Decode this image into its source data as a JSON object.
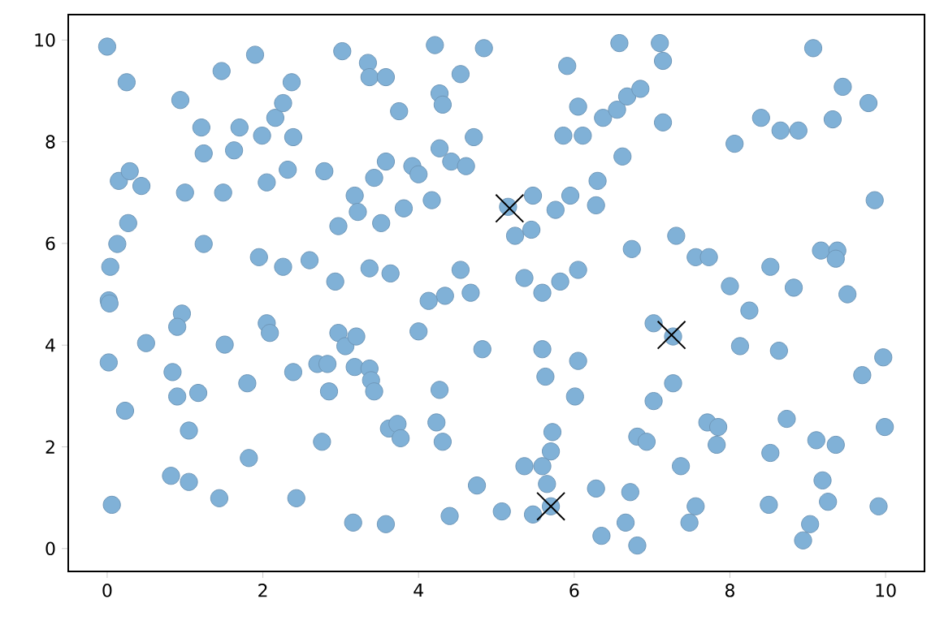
{
  "chart_data": {
    "type": "scatter",
    "xlim": [
      -0.5,
      10.5
    ],
    "ylim": [
      -0.45,
      10.5
    ],
    "xticks": [
      0,
      2,
      4,
      6,
      8,
      10
    ],
    "yticks": [
      0,
      2,
      4,
      6,
      8,
      10
    ],
    "series": [
      {
        "marker": "circle",
        "color": "#80b1d7",
        "x": [
          0,
          0.25,
          0.94,
          1.21,
          1.24,
          1.47,
          1.9,
          1.7,
          1.63,
          1.99,
          2.16,
          2.26,
          2.37,
          2.39,
          2.32,
          2.05,
          1.49,
          1.0,
          0.15,
          0.29,
          0.44,
          0.27,
          0.13,
          0.04,
          0.02,
          0.03,
          1.24,
          1.95,
          2.26,
          2.6,
          2.79,
          2.93,
          3.02,
          3.35,
          3.37,
          3.58,
          3.75,
          3.18,
          3.22,
          2.97,
          3.52,
          3.43,
          3.58,
          3.81,
          3.92,
          4.0,
          3.37,
          3.64,
          4.17,
          4.21,
          4.54,
          4.27,
          4.31,
          4.27,
          4.42,
          4.61,
          4.71,
          4.84,
          4.54,
          4.67,
          4.34,
          4.13,
          5.91,
          6.58,
          7.1,
          7.14,
          6.05,
          5.86,
          6.11,
          6.37,
          6.55,
          6.68,
          6.85,
          7.14,
          6.62,
          6.3,
          5.95,
          5.76,
          6.28,
          5.47,
          5.15,
          5.24,
          5.45,
          5.36,
          5.59,
          5.82,
          6.05,
          6.74,
          7.31,
          7.56,
          7.73,
          8.0,
          8.52,
          8.82,
          9.17,
          9.38,
          9.36,
          9.51,
          9.86,
          8.06,
          8.4,
          8.65,
          8.88,
          9.32,
          9.45,
          9.78,
          9.07,
          0.96,
          0.9,
          0.5,
          1.51,
          0.02,
          0.84,
          0.9,
          1.17,
          0.23,
          1.05,
          1.8,
          2.05,
          2.09,
          1.82,
          0.82,
          1.05,
          1.44,
          0.06,
          2.39,
          2.7,
          2.83,
          2.85,
          2.76,
          2.43,
          2.97,
          3.06,
          3.2,
          3.18,
          3.37,
          3.39,
          3.43,
          3.16,
          3.58,
          3.62,
          3.73,
          3.77,
          4.0,
          4.27,
          4.23,
          4.31,
          4.4,
          4.75,
          4.82,
          8.25,
          7.02,
          7.27,
          8.13,
          8.63,
          9.97,
          9.7,
          5.59,
          6.05,
          5.63,
          6.01,
          7.27,
          7.02,
          7.71,
          7.85,
          7.83,
          8.73,
          9.11,
          9.36,
          9.99,
          8.52,
          6.81,
          6.93,
          5.72,
          5.7,
          5.36,
          5.59,
          7.37,
          5.65,
          5.07,
          5.47,
          5.7,
          6.28,
          6.72,
          6.35,
          6.66,
          6.81,
          7.56,
          7.48,
          8.5,
          9.19,
          9.26,
          9.03,
          8.94,
          9.91
        ],
        "values": [
          9.87,
          9.17,
          8.82,
          8.28,
          7.77,
          9.39,
          9.71,
          8.28,
          7.83,
          8.12,
          8.47,
          8.76,
          9.17,
          8.09,
          7.45,
          7.2,
          7.0,
          7.0,
          7.23,
          7.42,
          7.13,
          6.4,
          5.99,
          5.54,
          4.88,
          4.82,
          5.99,
          5.73,
          5.54,
          5.67,
          7.42,
          5.25,
          9.78,
          9.55,
          9.27,
          9.27,
          8.6,
          6.94,
          6.62,
          6.34,
          6.4,
          7.29,
          7.61,
          6.69,
          7.52,
          7.36,
          5.51,
          5.41,
          6.85,
          9.9,
          9.33,
          8.95,
          8.73,
          7.87,
          7.61,
          7.52,
          8.09,
          9.84,
          5.48,
          5.03,
          4.97,
          4.87,
          9.49,
          9.94,
          9.94,
          9.59,
          8.69,
          8.12,
          8.12,
          8.47,
          8.63,
          8.89,
          9.04,
          8.38,
          7.71,
          7.23,
          6.94,
          6.66,
          6.75,
          6.94,
          6.72,
          6.15,
          6.27,
          5.32,
          5.03,
          5.25,
          5.48,
          5.89,
          6.15,
          5.73,
          5.73,
          5.16,
          5.54,
          5.13,
          5.86,
          5.86,
          5.7,
          5.0,
          6.85,
          7.96,
          8.47,
          8.22,
          8.22,
          8.44,
          9.08,
          8.76,
          9.84,
          4.62,
          4.36,
          4.04,
          4.01,
          3.66,
          3.47,
          2.99,
          3.06,
          2.71,
          2.32,
          3.25,
          4.43,
          4.24,
          1.78,
          1.43,
          1.31,
          0.99,
          0.86,
          3.47,
          3.63,
          3.63,
          3.09,
          2.1,
          0.99,
          4.24,
          3.98,
          4.17,
          3.57,
          3.54,
          3.31,
          3.09,
          0.51,
          0.48,
          2.36,
          2.45,
          2.17,
          4.27,
          3.12,
          2.48,
          2.1,
          0.64,
          1.24,
          3.92,
          4.68,
          4.43,
          4.17,
          3.98,
          3.89,
          3.76,
          3.41,
          3.92,
          3.69,
          3.38,
          2.99,
          3.25,
          2.9,
          2.48,
          2.39,
          2.04,
          2.55,
          2.13,
          2.04,
          2.39,
          1.88,
          2.2,
          2.1,
          2.29,
          1.91,
          1.62,
          1.62,
          1.62,
          1.27,
          0.73,
          0.67,
          0.83,
          1.18,
          1.11,
          0.25,
          0.51,
          0.06,
          0.83,
          0.51,
          0.86,
          1.34,
          0.92,
          0.48,
          0.16,
          0.83
        ]
      },
      {
        "marker": "cross",
        "color": "#000000",
        "x": [
          5.17,
          7.25,
          5.7
        ],
        "values": [
          6.69,
          4.2,
          0.83
        ]
      }
    ]
  }
}
